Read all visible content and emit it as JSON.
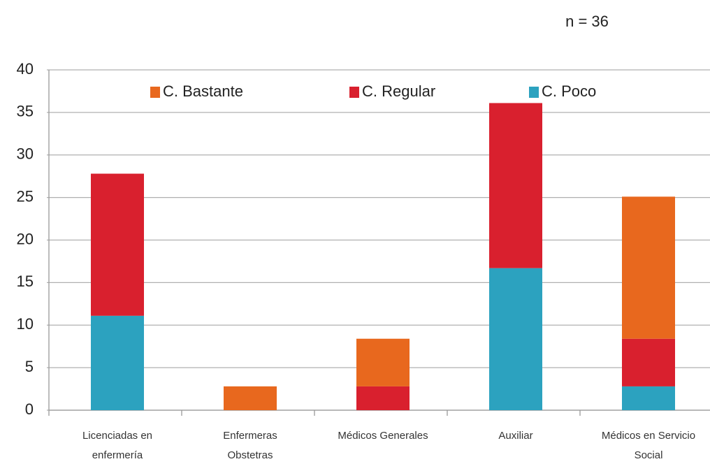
{
  "chart_data": {
    "type": "stacked_bar",
    "annotation": "n = 36",
    "categories": [
      "Licenciadas en enfermería",
      "Enfermeras Obstetras",
      "Médicos Generales",
      "Auxiliar",
      "Médicos en Servicio Social"
    ],
    "series": [
      {
        "name": "C. Bastante",
        "color": "#e8681e",
        "values": [
          0,
          2.8,
          5.6,
          0,
          16.7
        ]
      },
      {
        "name": "C. Regular",
        "color": "#d9202e",
        "values": [
          16.7,
          0,
          2.8,
          19.4,
          5.6
        ]
      },
      {
        "name": "C. Poco",
        "color": "#2ca2bf",
        "values": [
          11.1,
          0,
          0,
          16.7,
          2.8
        ]
      }
    ],
    "ylim": [
      0,
      40
    ],
    "yticks": [
      0,
      5,
      10,
      15,
      20,
      25,
      30,
      35,
      40
    ],
    "grid": true,
    "legend": "top"
  }
}
